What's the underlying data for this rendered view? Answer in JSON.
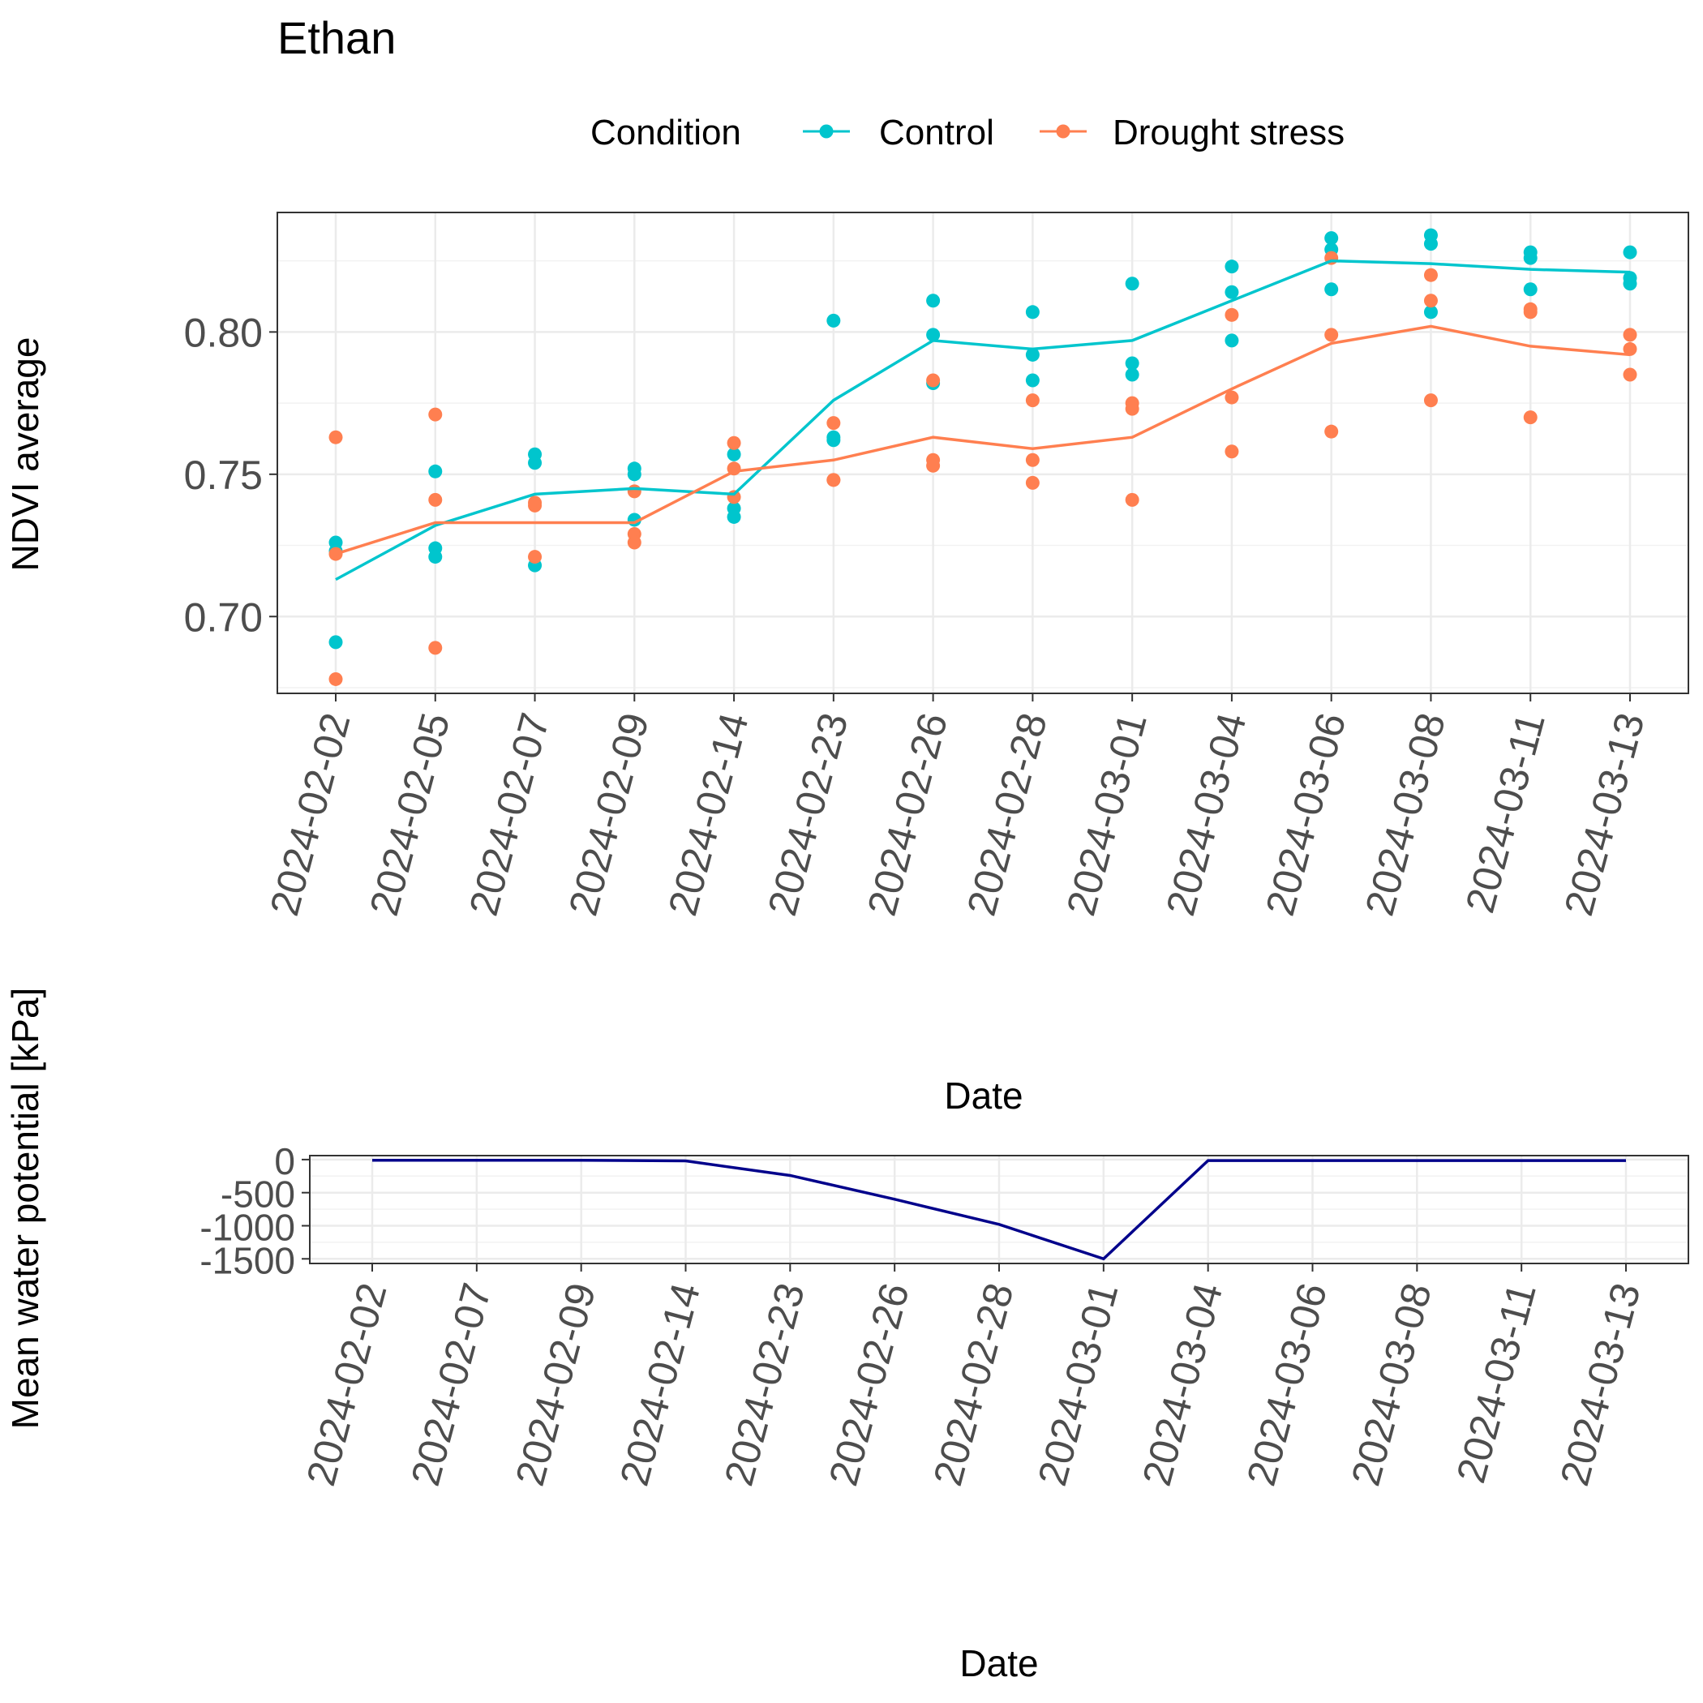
{
  "title": "Ethan",
  "legend": {
    "title": "Condition",
    "entries": [
      {
        "label": "Control",
        "color": "#00BFC4"
      },
      {
        "label": "Drought stress",
        "color": "#F8766D"
      }
    ]
  },
  "chart_data": [
    {
      "type": "scatter",
      "panel": "ndvi",
      "xlabel": "Date",
      "ylabel": "NDVI average",
      "ylim": [
        0.673,
        0.842
      ],
      "yticks": [
        0.7,
        0.75,
        0.8
      ],
      "ytick_labels": [
        "0.70",
        "0.75",
        "0.80"
      ],
      "grid": true,
      "legend_position": "top",
      "categories": [
        "2024-02-02",
        "2024-02-05",
        "2024-02-07",
        "2024-02-09",
        "2024-02-14",
        "2024-02-23",
        "2024-02-26",
        "2024-02-28",
        "2024-03-01",
        "2024-03-04",
        "2024-03-06",
        "2024-03-08",
        "2024-03-11",
        "2024-03-13"
      ],
      "series": [
        {
          "name": "Control",
          "color": "#00C5CD",
          "points": [
            [
              0.726,
              0.723,
              0.691
            ],
            [
              0.751,
              0.724,
              0.721
            ],
            [
              0.757,
              0.754,
              0.718
            ],
            [
              0.752,
              0.75,
              0.734
            ],
            [
              0.757,
              0.738,
              0.735
            ],
            [
              0.804,
              0.763,
              0.762
            ],
            [
              0.811,
              0.799,
              0.782
            ],
            [
              0.807,
              0.792,
              0.783
            ],
            [
              0.817,
              0.789,
              0.785
            ],
            [
              0.823,
              0.814,
              0.797
            ],
            [
              0.833,
              0.829,
              0.815
            ],
            [
              0.834,
              0.831,
              0.807
            ],
            [
              0.828,
              0.826,
              0.815
            ],
            [
              0.828,
              0.819,
              0.817
            ]
          ],
          "line": [
            0.713,
            0.732,
            0.743,
            0.745,
            0.743,
            0.776,
            0.797,
            0.794,
            0.797,
            0.811,
            0.825,
            0.824,
            0.822,
            0.821
          ]
        },
        {
          "name": "Drought stress",
          "color": "#FF7F50",
          "points": [
            [
              0.763,
              0.722,
              0.678
            ],
            [
              0.771,
              0.741,
              0.689
            ],
            [
              0.74,
              0.739,
              0.721
            ],
            [
              0.744,
              0.729,
              0.726
            ],
            [
              0.761,
              0.752,
              0.742
            ],
            [
              0.768,
              0.748,
              0.748
            ],
            [
              0.783,
              0.755,
              0.753
            ],
            [
              0.776,
              0.755,
              0.747
            ],
            [
              0.775,
              0.773,
              0.741
            ],
            [
              0.806,
              0.777,
              0.758
            ],
            [
              0.826,
              0.799,
              0.765
            ],
            [
              0.82,
              0.811,
              0.776
            ],
            [
              0.808,
              0.807,
              0.77
            ],
            [
              0.799,
              0.794,
              0.785
            ]
          ],
          "line": [
            0.722,
            0.733,
            0.733,
            0.733,
            0.751,
            0.755,
            0.763,
            0.759,
            0.763,
            0.78,
            0.796,
            0.802,
            0.795,
            0.792
          ]
        }
      ]
    },
    {
      "type": "line",
      "panel": "water",
      "xlabel": "Date",
      "ylabel": "Mean water potential [kPa]",
      "ylim": [
        -1570,
        60
      ],
      "yticks": [
        0,
        -500,
        -1000,
        -1500
      ],
      "ytick_labels": [
        "0",
        "-500",
        "-1000",
        "-1500"
      ],
      "grid": true,
      "categories": [
        "2024-02-02",
        "2024-02-07",
        "2024-02-09",
        "2024-02-14",
        "2024-02-23",
        "2024-02-26",
        "2024-02-28",
        "2024-03-01",
        "2024-03-04",
        "2024-03-06",
        "2024-03-08",
        "2024-03-11",
        "2024-03-13"
      ],
      "series": [
        {
          "color": "#00008B",
          "values": [
            -10,
            -10,
            -10,
            -20,
            -240,
            -600,
            -980,
            -1500,
            -15,
            -15,
            -15,
            -15,
            -15
          ]
        }
      ]
    }
  ]
}
